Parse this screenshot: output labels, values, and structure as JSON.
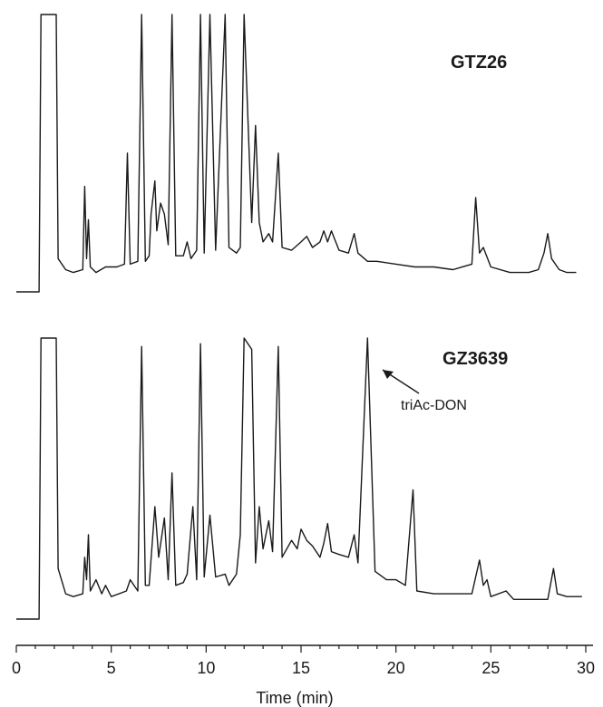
{
  "chart_data": {
    "type": "line",
    "title": "",
    "xlabel": "Time (min)",
    "ylabel": "",
    "xlim": [
      0,
      30
    ],
    "x_ticks": [
      0,
      5,
      10,
      15,
      20,
      25,
      30
    ],
    "grid": false,
    "legend": "none",
    "series": [
      {
        "name": "GTZ26",
        "baseline": 6,
        "points": [
          [
            0,
            0
          ],
          [
            1.2,
            0
          ],
          [
            1.3,
            100
          ],
          [
            2.1,
            100
          ],
          [
            2.2,
            12
          ],
          [
            2.6,
            8
          ],
          [
            3.0,
            7
          ],
          [
            3.5,
            8
          ],
          [
            3.6,
            38
          ],
          [
            3.7,
            12
          ],
          [
            3.8,
            26
          ],
          [
            3.9,
            9
          ],
          [
            4.2,
            7
          ],
          [
            4.7,
            9
          ],
          [
            5.3,
            9
          ],
          [
            5.7,
            10
          ],
          [
            5.85,
            50
          ],
          [
            6.0,
            10
          ],
          [
            6.4,
            11
          ],
          [
            6.6,
            100
          ],
          [
            6.8,
            11
          ],
          [
            7.0,
            13
          ],
          [
            7.1,
            28
          ],
          [
            7.3,
            40
          ],
          [
            7.4,
            22
          ],
          [
            7.6,
            32
          ],
          [
            7.8,
            28
          ],
          [
            8.0,
            17
          ],
          [
            8.2,
            100
          ],
          [
            8.4,
            13
          ],
          [
            8.8,
            13
          ],
          [
            9.0,
            18
          ],
          [
            9.2,
            12
          ],
          [
            9.5,
            15
          ],
          [
            9.7,
            100
          ],
          [
            9.9,
            14
          ],
          [
            10.2,
            100
          ],
          [
            10.5,
            15
          ],
          [
            11.0,
            100
          ],
          [
            11.2,
            16
          ],
          [
            11.6,
            14
          ],
          [
            11.8,
            16
          ],
          [
            12.0,
            100
          ],
          [
            12.4,
            25
          ],
          [
            12.6,
            60
          ],
          [
            12.8,
            25
          ],
          [
            13.0,
            18
          ],
          [
            13.3,
            21
          ],
          [
            13.5,
            18
          ],
          [
            13.8,
            50
          ],
          [
            14.0,
            16
          ],
          [
            14.5,
            15
          ],
          [
            15.0,
            18
          ],
          [
            15.3,
            20
          ],
          [
            15.6,
            16
          ],
          [
            16.0,
            18
          ],
          [
            16.2,
            22
          ],
          [
            16.4,
            18
          ],
          [
            16.6,
            22
          ],
          [
            17.0,
            15
          ],
          [
            17.5,
            14
          ],
          [
            17.8,
            21
          ],
          [
            18.0,
            14
          ],
          [
            18.5,
            11
          ],
          [
            19.0,
            11
          ],
          [
            20.0,
            10
          ],
          [
            21.0,
            9
          ],
          [
            22.0,
            9
          ],
          [
            23.0,
            8
          ],
          [
            24.0,
            10
          ],
          [
            24.2,
            34
          ],
          [
            24.4,
            14
          ],
          [
            24.6,
            16
          ],
          [
            25.0,
            9
          ],
          [
            26.0,
            7
          ],
          [
            27.0,
            7
          ],
          [
            27.5,
            8
          ],
          [
            27.8,
            14
          ],
          [
            28.0,
            21
          ],
          [
            28.2,
            12
          ],
          [
            28.6,
            8
          ],
          [
            29.0,
            7
          ],
          [
            29.5,
            7
          ]
        ]
      },
      {
        "name": "GZ3639",
        "baseline": 6,
        "points": [
          [
            0,
            0
          ],
          [
            1.2,
            0
          ],
          [
            1.3,
            100
          ],
          [
            2.1,
            100
          ],
          [
            2.2,
            18
          ],
          [
            2.6,
            9
          ],
          [
            3.0,
            8
          ],
          [
            3.5,
            9
          ],
          [
            3.6,
            22
          ],
          [
            3.7,
            14
          ],
          [
            3.8,
            30
          ],
          [
            3.9,
            10
          ],
          [
            4.2,
            14
          ],
          [
            4.5,
            9
          ],
          [
            4.7,
            12
          ],
          [
            5.0,
            8
          ],
          [
            5.8,
            10
          ],
          [
            6.0,
            14
          ],
          [
            6.4,
            10
          ],
          [
            6.6,
            97
          ],
          [
            6.8,
            12
          ],
          [
            7.0,
            12
          ],
          [
            7.3,
            40
          ],
          [
            7.5,
            22
          ],
          [
            7.8,
            36
          ],
          [
            8.0,
            14
          ],
          [
            8.2,
            52
          ],
          [
            8.4,
            12
          ],
          [
            8.8,
            13
          ],
          [
            9.0,
            16
          ],
          [
            9.3,
            40
          ],
          [
            9.5,
            14
          ],
          [
            9.7,
            98
          ],
          [
            9.9,
            15
          ],
          [
            10.2,
            37
          ],
          [
            10.5,
            15
          ],
          [
            11.0,
            16
          ],
          [
            11.2,
            12
          ],
          [
            11.6,
            16
          ],
          [
            11.8,
            30
          ],
          [
            12.0,
            100
          ],
          [
            12.4,
            96
          ],
          [
            12.6,
            20
          ],
          [
            12.8,
            40
          ],
          [
            13.0,
            25
          ],
          [
            13.3,
            35
          ],
          [
            13.5,
            24
          ],
          [
            13.8,
            97
          ],
          [
            14.0,
            22
          ],
          [
            14.5,
            28
          ],
          [
            14.8,
            25
          ],
          [
            15.0,
            32
          ],
          [
            15.3,
            28
          ],
          [
            15.6,
            26
          ],
          [
            16.0,
            22
          ],
          [
            16.2,
            27
          ],
          [
            16.4,
            34
          ],
          [
            16.6,
            24
          ],
          [
            17.0,
            23
          ],
          [
            17.5,
            22
          ],
          [
            17.8,
            30
          ],
          [
            18.0,
            20
          ],
          [
            18.5,
            100
          ],
          [
            18.9,
            17
          ],
          [
            19.5,
            14
          ],
          [
            20.0,
            14
          ],
          [
            20.5,
            12
          ],
          [
            20.9,
            46
          ],
          [
            21.1,
            10
          ],
          [
            22.0,
            9
          ],
          [
            23.0,
            9
          ],
          [
            24.0,
            9
          ],
          [
            24.4,
            21
          ],
          [
            24.6,
            12
          ],
          [
            24.8,
            14
          ],
          [
            25.0,
            8
          ],
          [
            25.8,
            10
          ],
          [
            26.2,
            7
          ],
          [
            27.0,
            7
          ],
          [
            28.0,
            7
          ],
          [
            28.3,
            18
          ],
          [
            28.5,
            9
          ],
          [
            29.0,
            8
          ],
          [
            29.8,
            8
          ]
        ]
      }
    ],
    "annotations": [
      {
        "text": "triAc-DON",
        "series": "GZ3639",
        "x": 18.7
      }
    ]
  }
}
